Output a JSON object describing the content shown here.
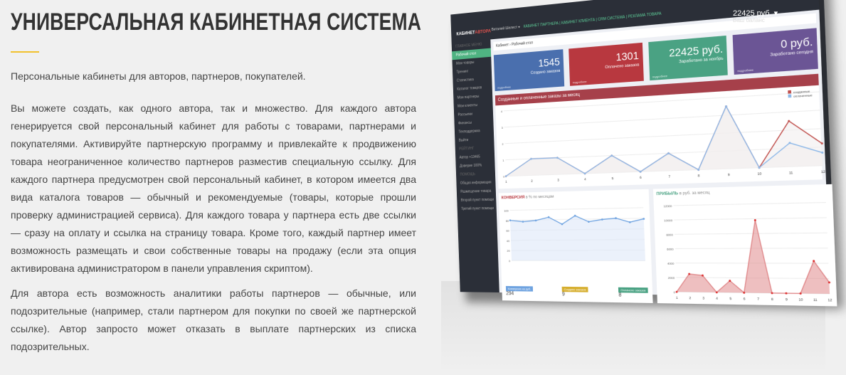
{
  "title": "УНИВЕРСАЛЬНАЯ КАБИНЕТНАЯ СИСТЕМА",
  "accent_color": "#f2c12e",
  "paragraphs": [
    "Персональные кабинеты для авторов, партнеров, покупателей.",
    "Вы можете создать, как одного автора, так и множество. Для каждого автора генерируется свой персональный кабинет для работы с товарами, партнерами и покупателями. Активируйте партнерскую программу и привлекайте к продвижению товара неограниченное количество партнеров разместив специальную ссылку. Для каждого партнера предусмотрен свой персональный кабинет, в котором имеется два вида каталога товаров — обычный и рекомендуемые (товары, которые прошли проверку администрацией сервиса). Для каждого товара у партнера есть две ссылки — сразу на оплату и ссылка на страницу товара. Кроме того, каждый партнер имеет возможность размещать и свои собственные товары на продажу (если эта опция активирована администратором в панели управления скриптом).",
    "Для автора есть возможность аналитики работы партнеров — обычные, или подозрительные (например, стали партнером для покупки по своей же партнерской ссылке). Автор запросто может отказать в выплате партнерских из списка подозрительных."
  ],
  "dashboard": {
    "logo_a": "КАБИНЕТ",
    "logo_b": "АВТОРА",
    "user": "Виталий Шелест ▾",
    "nav": "КАБИНЕТ ПАРТНЕРА | КАБИНЕТ КЛИЕНТА | CRM СИСТЕМА | РЕКЛАМА ТОВАРА",
    "balance": "22425 руб. ▾",
    "balance_label": "Ваш баланс",
    "sidebar": [
      "ГЛАВНОЕ МЕНЮ",
      "Рабочий стол",
      "Мои товары",
      "Тренинг",
      "Статистика",
      "Каталог товаров",
      "Мои партнеры",
      "Мои клиенты",
      "Рассылки",
      "Финансы",
      "Техподдержка",
      "Выйти",
      "РЕЙТИНГ",
      "Автор +13465",
      "Доверие 100%",
      "ПОМОЩЬ",
      "Общая информация",
      "Размещение товара",
      "Второй пункт помощи",
      "Третий пункт помощи"
    ],
    "breadcrumb": "Кабинет › Рабочий стол",
    "cards": [
      {
        "value": "1545",
        "label": "Создано заказов",
        "more": "подробнее",
        "color": "#4a6fae"
      },
      {
        "value": "1301",
        "label": "Оплачено заказов",
        "more": "подробнее",
        "color": "#b8383f"
      },
      {
        "value": "22425 руб.",
        "label": "Заработано за ноябрь",
        "more": "подробнее",
        "color": "#4aa283"
      },
      {
        "value": "0 руб.",
        "label": "Заработано сегодня",
        "more": "подробнее",
        "color": "#6b5595"
      }
    ],
    "orders_title": "Созданные и оплаченные заказы за месяц",
    "conversion_title": "КОНВЕРСИЯ",
    "conversion_sub": "в % по месяцам",
    "profit_title": "ПРИБЫЛЬ",
    "profit_sub": "в руб. за месяц",
    "badges": [
      {
        "label": "Конверсия на руб.",
        "value": "294",
        "color": "#6fa3e0"
      },
      {
        "label": "Создано заказов",
        "value": "9",
        "color": "#d6ae2e"
      },
      {
        "label": "Оплачено заказов",
        "value": "8",
        "color": "#4aa283"
      }
    ]
  },
  "chart_data": [
    {
      "type": "line",
      "x": [
        1,
        2,
        3,
        4,
        5,
        6,
        7,
        8,
        9,
        10,
        11,
        12
      ],
      "ylim": [
        0,
        4
      ],
      "series": [
        {
          "name": "созданные",
          "color": "#c0504d",
          "values": [
            0,
            1,
            1,
            0,
            1,
            0,
            1,
            0,
            3.5,
            0,
            2.5,
            1.2
          ]
        },
        {
          "name": "оплаченные",
          "color": "#8db8e8",
          "values": [
            0,
            1,
            1,
            0,
            1,
            0,
            1,
            0,
            3.5,
            0,
            1.3,
            0.7
          ]
        }
      ]
    },
    {
      "type": "area",
      "ylim": [
        0,
        100
      ],
      "y_ticks": [
        0,
        20,
        40,
        60,
        80,
        100
      ],
      "color": "#6fa3e0",
      "values": [
        80,
        77,
        79,
        85,
        71,
        87,
        75,
        79,
        81,
        73,
        79
      ]
    },
    {
      "type": "area",
      "x": [
        1,
        2,
        3,
        4,
        5,
        6,
        7,
        8,
        9,
        10,
        11,
        12
      ],
      "ylim": [
        0,
        12000
      ],
      "y_ticks": [
        0,
        2000,
        4000,
        6000,
        8000,
        10000,
        12000
      ],
      "color": "#e08a8c",
      "values": [
        0,
        2500,
        2300,
        0,
        1600,
        0,
        9800,
        0,
        0,
        0,
        4300,
        1500
      ]
    }
  ]
}
